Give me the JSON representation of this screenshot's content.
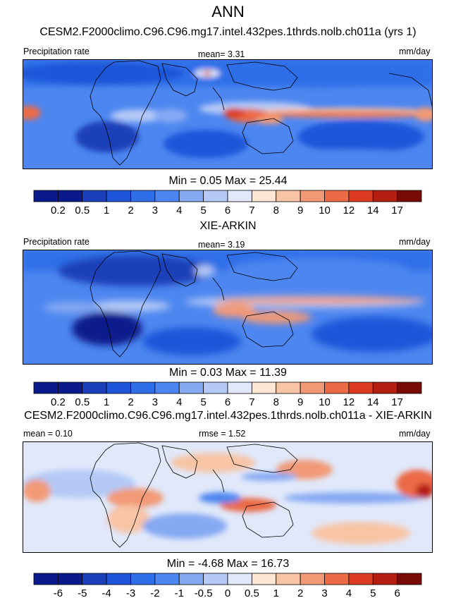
{
  "page": {
    "title": "ANN",
    "units": "mm/day"
  },
  "colorbars": {
    "precip": {
      "labels": [
        "0.2",
        "0.5",
        "1",
        "2",
        "3",
        "4",
        "5",
        "6",
        "7",
        "8",
        "9",
        "10",
        "12",
        "14",
        "17"
      ],
      "colors": [
        "#0a1a8c",
        "#1a3fb8",
        "#1f56d9",
        "#2f6ee8",
        "#4d86f0",
        "#85a9f3",
        "#b4c9f6",
        "#e0e8fa",
        "#fde7d4",
        "#f8c4a6",
        "#f29a76",
        "#ec6a46",
        "#dc3b22",
        "#b51f12",
        "#7a0a06"
      ]
    },
    "diff": {
      "labels": [
        "-6",
        "-5",
        "-4",
        "-3",
        "-2",
        "-1",
        "-0.5",
        "0",
        "0.5",
        "1",
        "2",
        "3",
        "4",
        "5",
        "6"
      ],
      "colors": [
        "#0a1a8c",
        "#1a3fb8",
        "#1f56d9",
        "#2f6ee8",
        "#4d86f0",
        "#85a9f3",
        "#b4c9f6",
        "#e0e8fa",
        "#fde7d4",
        "#f8c4a6",
        "#f29a76",
        "#ec6a46",
        "#dc3b22",
        "#b51f12",
        "#7a0a06"
      ]
    }
  },
  "panels": [
    {
      "subtitle": "CESM2.F2000climo.C96.C96.mg17.intel.432pes.1thrds.nolb.ch011a (yrs 1)",
      "left_label": "Precipitation rate",
      "center_label": "mean=   3.31",
      "right_label": "mm/day",
      "minmax": "Min =   0.05 Max =  25.44"
    },
    {
      "subtitle": "XIE-ARKIN",
      "left_label": "Precipitation rate",
      "center_label": "mean=   3.19",
      "right_label": "mm/day",
      "minmax": "Min =   0.03 Max =  11.39"
    },
    {
      "subtitle": "CESM2.F2000climo.C96.C96.mg17.intel.432pes.1thrds.nolb.ch011a - XIE-ARKIN",
      "left_label": "mean =   0.10",
      "center_label": "rmse =   1.52",
      "right_label": "mm/day",
      "minmax": "Min =  -4.68 Max =  16.73"
    }
  ],
  "chart_data": [
    {
      "type": "heatmap",
      "title": "CESM2.F2000climo.C96.C96.mg17.intel.432pes.1thrds.nolb.ch011a (yrs 1)",
      "variable": "Precipitation rate",
      "units": "mm/day",
      "mean": 3.31,
      "min": 0.05,
      "max": 25.44,
      "levels": [
        0.2,
        0.5,
        1,
        2,
        3,
        4,
        5,
        6,
        7,
        8,
        9,
        10,
        12,
        14,
        17
      ]
    },
    {
      "type": "heatmap",
      "title": "XIE-ARKIN",
      "variable": "Precipitation rate",
      "units": "mm/day",
      "mean": 3.19,
      "min": 0.03,
      "max": 11.39,
      "levels": [
        0.2,
        0.5,
        1,
        2,
        3,
        4,
        5,
        6,
        7,
        8,
        9,
        10,
        12,
        14,
        17
      ]
    },
    {
      "type": "heatmap",
      "title": "CESM2.F2000climo.C96.C96.mg17.intel.432pes.1thrds.nolb.ch011a - XIE-ARKIN",
      "units": "mm/day",
      "mean": 0.1,
      "rmse": 1.52,
      "min": -4.68,
      "max": 16.73,
      "levels": [
        -6,
        -5,
        -4,
        -3,
        -2,
        -1,
        -0.5,
        0,
        0.5,
        1,
        2,
        3,
        4,
        5,
        6
      ]
    }
  ]
}
